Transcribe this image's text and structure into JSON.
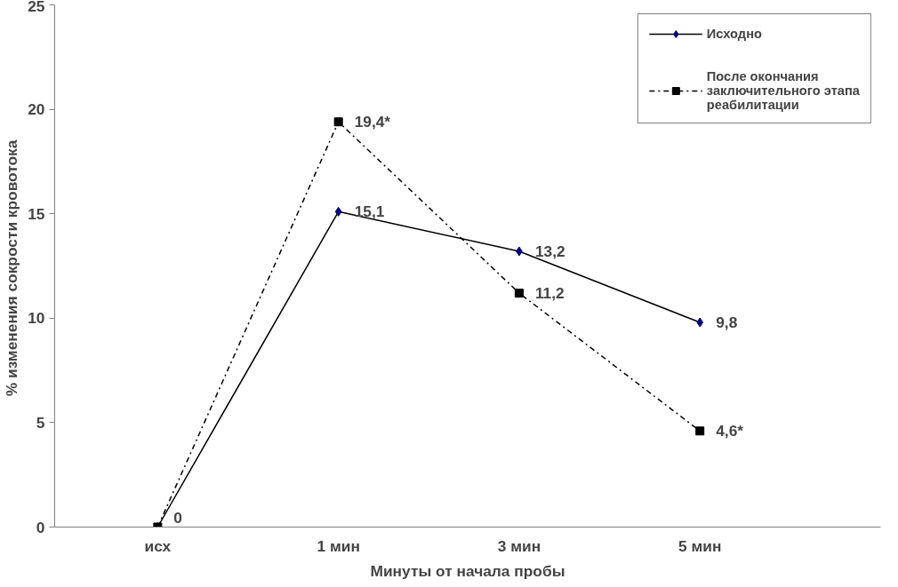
{
  "chart_data": {
    "type": "line",
    "categories": [
      "исх",
      "1 мин",
      "3 мин",
      "5 мин"
    ],
    "xlabel": "Минуты от начала пробы",
    "ylabel": "% изменения сокрости  кровотока",
    "ylim": [
      0,
      25
    ],
    "yticks": [
      0,
      5,
      10,
      15,
      20,
      25
    ],
    "grid": false,
    "legend": "top right",
    "series": [
      {
        "name": "Исходно",
        "color": "#000080",
        "values": [
          0,
          15.1,
          13.2,
          9.8
        ],
        "marker": "diamond",
        "line_style": "solid",
        "value_labels": [
          "0",
          "15,1",
          "13,2",
          "9,8"
        ]
      },
      {
        "name": "После окончания заключительного этапа реабилитации",
        "color": "#000000",
        "values": [
          0,
          19.4,
          11.2,
          4.6
        ],
        "marker": "square",
        "line_style": "dashdot",
        "value_labels": [
          null,
          "19,4*",
          "11,2",
          "4,6*"
        ]
      }
    ]
  }
}
